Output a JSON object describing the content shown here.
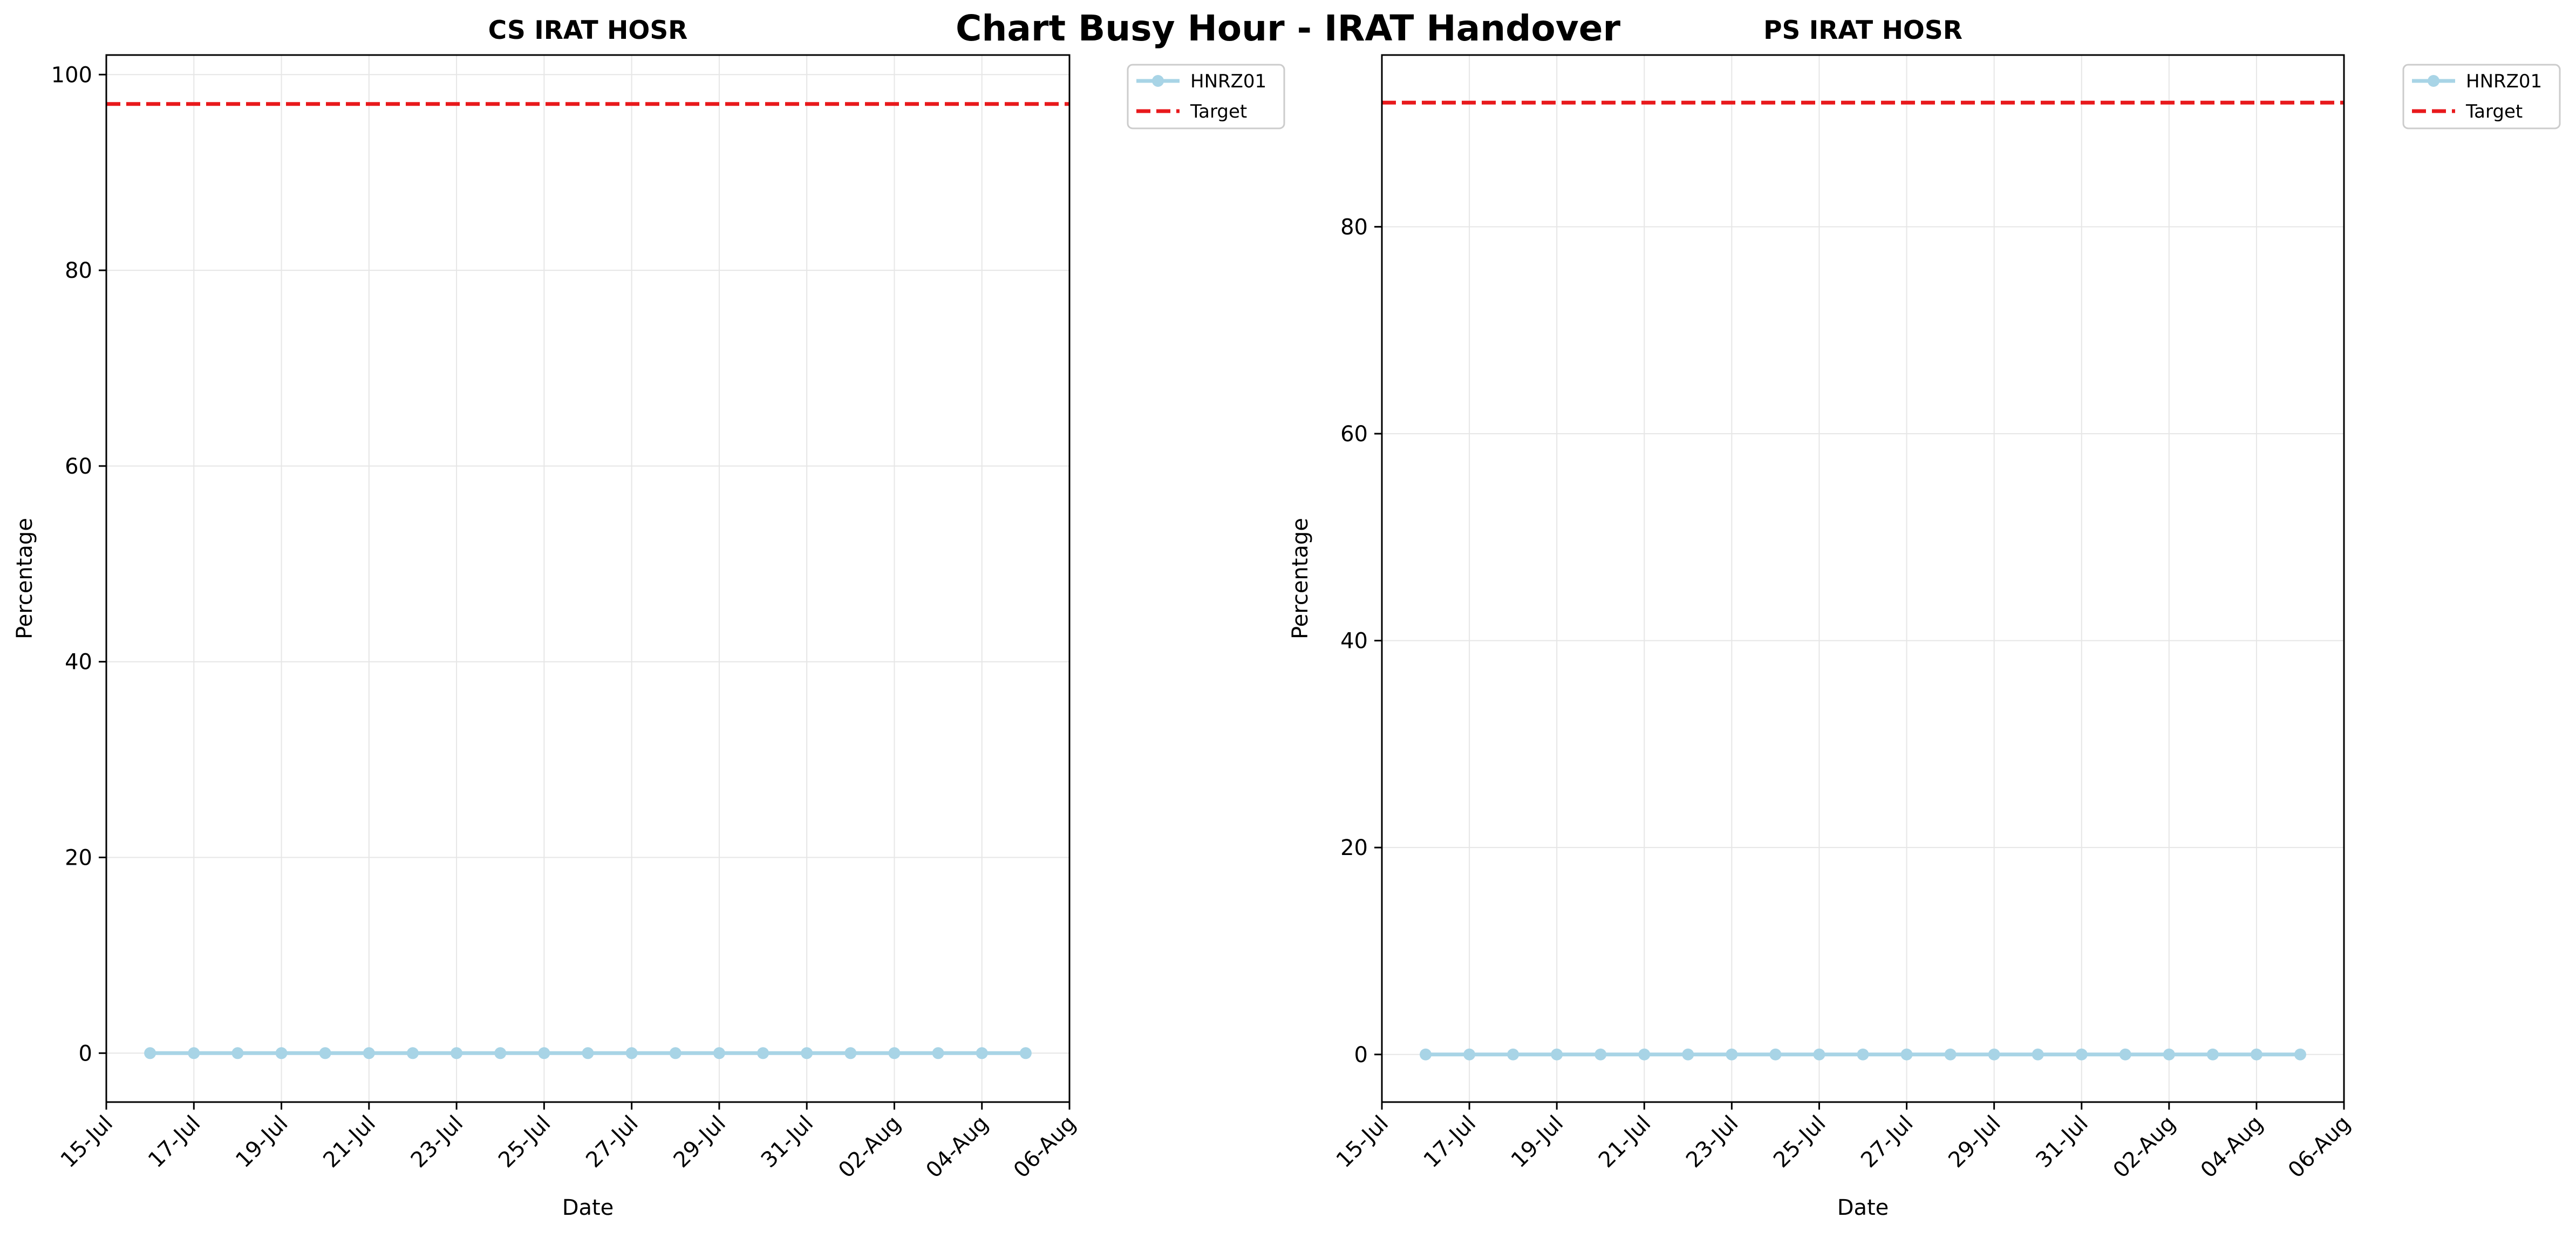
{
  "title": "Chart Busy Hour - IRAT Handover",
  "colors": {
    "series": "#a8d4e6",
    "target": "#e8191c",
    "grid": "#e6e6e6",
    "axis": "#000000"
  },
  "chart_data": [
    {
      "type": "line",
      "title": "CS IRAT HOSR",
      "xlabel": "Date",
      "ylabel": "Percentage",
      "xlim": [
        "2025-07-15",
        "2025-08-06"
      ],
      "ylim": [
        -5,
        102
      ],
      "x_ticks": [
        "15-Jul",
        "17-Jul",
        "19-Jul",
        "21-Jul",
        "23-Jul",
        "25-Jul",
        "27-Jul",
        "29-Jul",
        "31-Jul",
        "02-Aug",
        "04-Aug",
        "06-Aug"
      ],
      "y_ticks": [
        0,
        20,
        40,
        60,
        80,
        100
      ],
      "grid": true,
      "legend_position": "outside-top-right",
      "x": [
        "2025-07-16",
        "2025-07-17",
        "2025-07-18",
        "2025-07-19",
        "2025-07-20",
        "2025-07-21",
        "2025-07-22",
        "2025-07-23",
        "2025-07-24",
        "2025-07-25",
        "2025-07-26",
        "2025-07-27",
        "2025-07-28",
        "2025-07-29",
        "2025-07-30",
        "2025-07-31",
        "2025-08-01",
        "2025-08-02",
        "2025-08-03",
        "2025-08-04",
        "2025-08-05"
      ],
      "series": [
        {
          "name": "HNRZ01",
          "values": [
            0,
            0,
            0,
            0,
            0,
            0,
            0,
            0,
            0,
            0,
            0,
            0,
            0,
            0,
            0,
            0,
            0,
            0,
            0,
            0,
            0
          ]
        }
      ],
      "target": {
        "name": "Target",
        "value": 97
      }
    },
    {
      "type": "line",
      "title": "PS IRAT HOSR",
      "xlabel": "Date",
      "ylabel": "Percentage",
      "xlim": [
        "2025-07-15",
        "2025-08-06"
      ],
      "ylim": [
        -4.6,
        96.6
      ],
      "x_ticks": [
        "15-Jul",
        "17-Jul",
        "19-Jul",
        "21-Jul",
        "23-Jul",
        "25-Jul",
        "27-Jul",
        "29-Jul",
        "31-Jul",
        "02-Aug",
        "04-Aug",
        "06-Aug"
      ],
      "y_ticks": [
        0,
        20,
        40,
        60,
        80
      ],
      "grid": true,
      "legend_position": "outside-top-right",
      "x": [
        "2025-07-16",
        "2025-07-17",
        "2025-07-18",
        "2025-07-19",
        "2025-07-20",
        "2025-07-21",
        "2025-07-22",
        "2025-07-23",
        "2025-07-24",
        "2025-07-25",
        "2025-07-26",
        "2025-07-27",
        "2025-07-28",
        "2025-07-29",
        "2025-07-30",
        "2025-07-31",
        "2025-08-01",
        "2025-08-02",
        "2025-08-03",
        "2025-08-04",
        "2025-08-05"
      ],
      "series": [
        {
          "name": "HNRZ01",
          "values": [
            0,
            0,
            0,
            0,
            0,
            0,
            0,
            0,
            0,
            0,
            0,
            0,
            0,
            0,
            0,
            0,
            0,
            0,
            0,
            0,
            0
          ]
        }
      ],
      "target": {
        "name": "Target",
        "value": 92
      }
    }
  ]
}
